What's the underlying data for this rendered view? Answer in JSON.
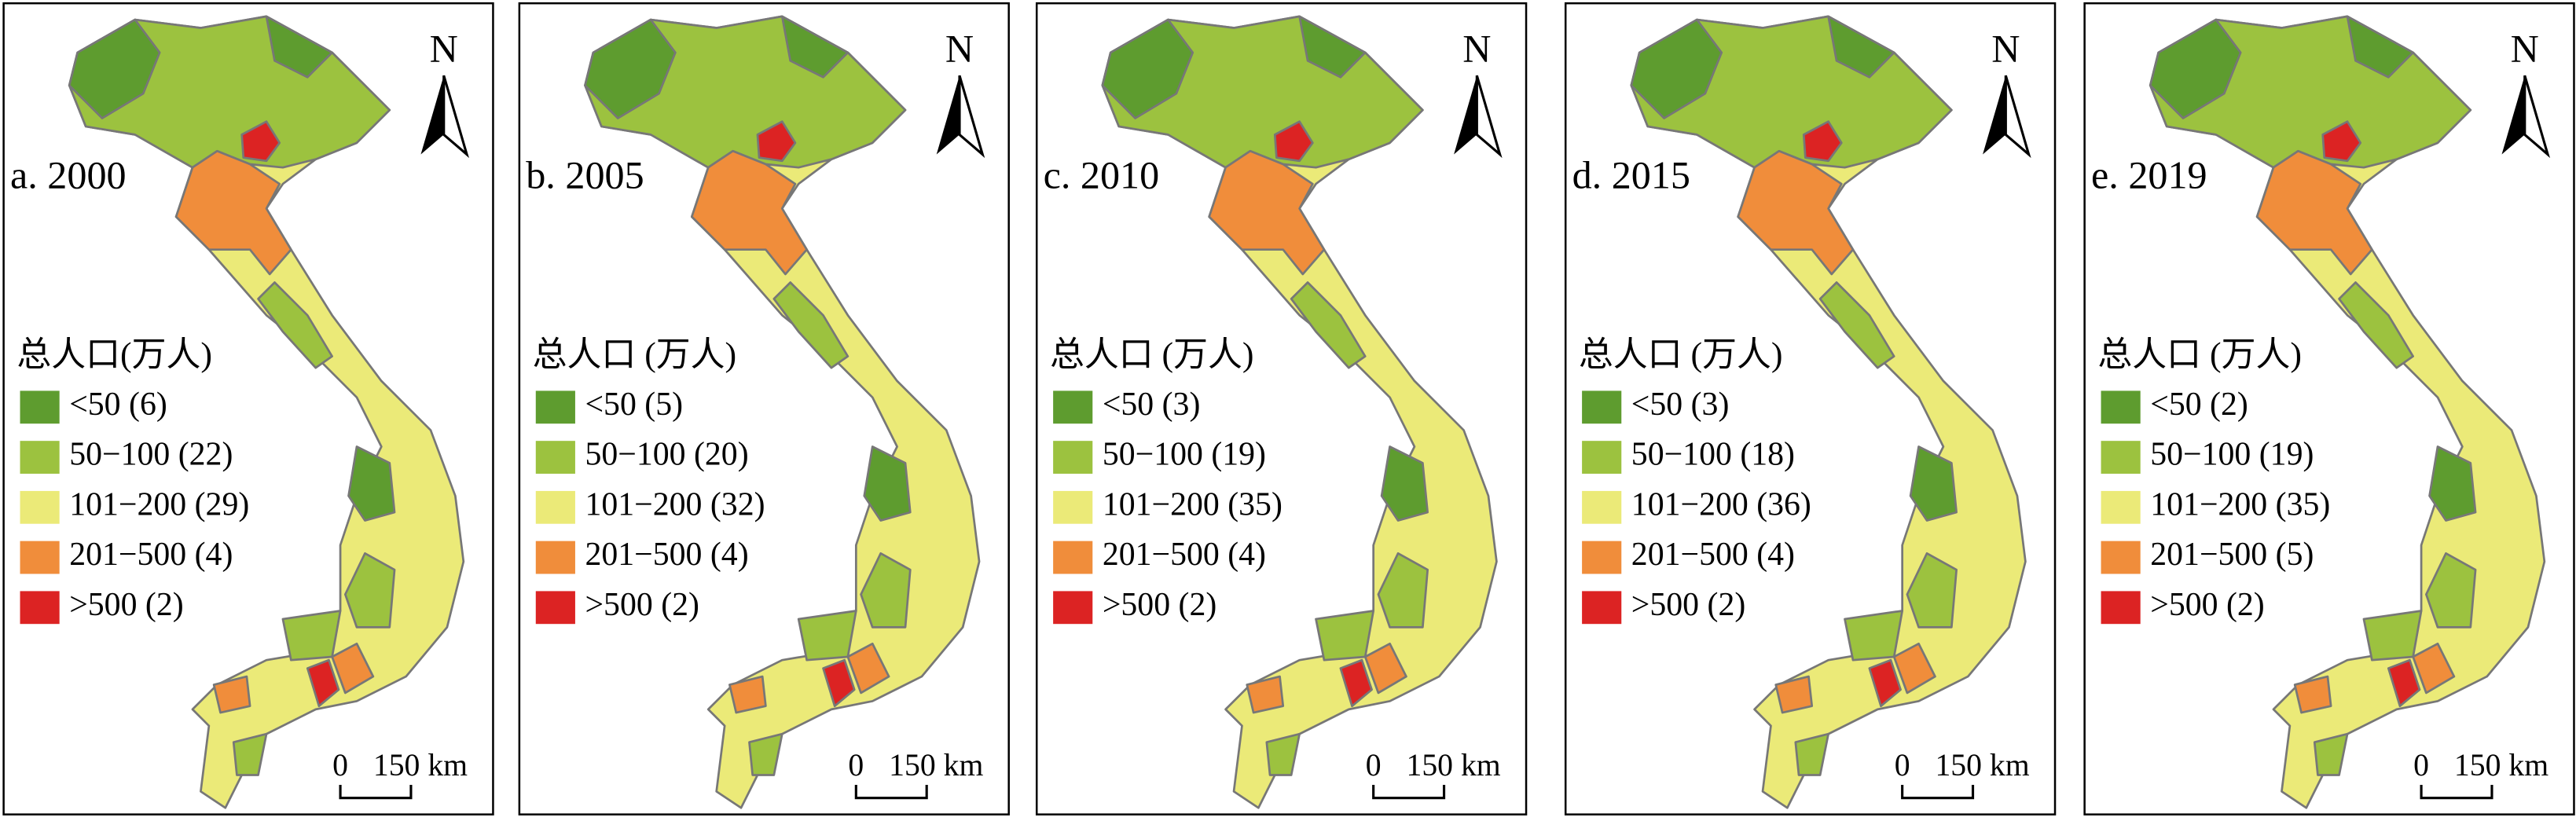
{
  "panels": [
    {
      "title": "a. 2000",
      "north": "N",
      "legend_title": "总人口(万人)",
      "scale_labels": [
        "0",
        "150 km"
      ],
      "legend": [
        {
          "label": "<50 (6)",
          "color": "#5e9c2f"
        },
        {
          "label": "50−100 (22)",
          "color": "#9cc23f"
        },
        {
          "label": "101−200 (29)",
          "color": "#ebea78"
        },
        {
          "label": "201−500 (4)",
          "color": "#f08d3b"
        },
        {
          "label": ">500 (2)",
          "color": "#dc2323"
        }
      ]
    },
    {
      "title": "b. 2005",
      "north": "N",
      "legend_title": "总人口 (万人)",
      "scale_labels": [
        "0",
        "150 km"
      ],
      "legend": [
        {
          "label": "<50 (5)",
          "color": "#5e9c2f"
        },
        {
          "label": "50−100 (20)",
          "color": "#9cc23f"
        },
        {
          "label": "101−200 (32)",
          "color": "#ebea78"
        },
        {
          "label": "201−500 (4)",
          "color": "#f08d3b"
        },
        {
          "label": ">500 (2)",
          "color": "#dc2323"
        }
      ]
    },
    {
      "title": "c. 2010",
      "north": "N",
      "legend_title": "总人口 (万人)",
      "scale_labels": [
        "0",
        "150 km"
      ],
      "legend": [
        {
          "label": "<50 (3)",
          "color": "#5e9c2f"
        },
        {
          "label": "50−100 (19)",
          "color": "#9cc23f"
        },
        {
          "label": "101−200 (35)",
          "color": "#ebea78"
        },
        {
          "label": "201−500 (4)",
          "color": "#f08d3b"
        },
        {
          "label": ">500 (2)",
          "color": "#dc2323"
        }
      ]
    },
    {
      "title": "d. 2015",
      "north": "N",
      "legend_title": "总人口 (万人)",
      "scale_labels": [
        "0",
        "150 km"
      ],
      "legend": [
        {
          "label": "<50 (3)",
          "color": "#5e9c2f"
        },
        {
          "label": "50−100 (18)",
          "color": "#9cc23f"
        },
        {
          "label": "101−200 (36)",
          "color": "#ebea78"
        },
        {
          "label": "201−500 (4)",
          "color": "#f08d3b"
        },
        {
          "label": ">500 (2)",
          "color": "#dc2323"
        }
      ]
    },
    {
      "title": "e. 2019",
      "north": "N",
      "legend_title": "总人口 (万人)",
      "scale_labels": [
        "0",
        "150 km"
      ],
      "legend": [
        {
          "label": "<50 (2)",
          "color": "#5e9c2f"
        },
        {
          "label": "50−100 (19)",
          "color": "#9cc23f"
        },
        {
          "label": "101−200 (35)",
          "color": "#ebea78"
        },
        {
          "label": "201−500 (5)",
          "color": "#f08d3b"
        },
        {
          "label": ">500 (2)",
          "color": "#dc2323"
        }
      ]
    }
  ]
}
